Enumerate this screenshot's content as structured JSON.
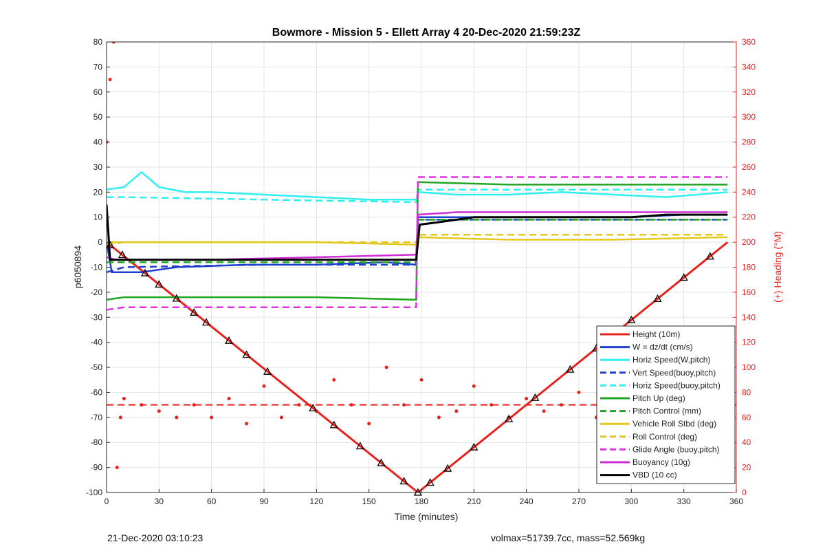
{
  "chart_data": {
    "type": "line",
    "title": "Bowmore - Mission 5 - Ellett Array 4 20-Dec-2020 21:59:23Z",
    "xlabel": "Time (minutes)",
    "ylabel": "p6050894",
    "ylabel_right": "(+) Heading (°M)",
    "xlim": [
      0,
      360
    ],
    "ylim": [
      -100,
      80
    ],
    "ylim_right": [
      0,
      360
    ],
    "xticks": [
      0,
      30,
      60,
      90,
      120,
      150,
      180,
      210,
      240,
      270,
      300,
      330,
      360
    ],
    "yticks": [
      -100,
      -90,
      -80,
      -70,
      -60,
      -50,
      -40,
      -30,
      -20,
      -10,
      0,
      10,
      20,
      30,
      40,
      50,
      60,
      70,
      80
    ],
    "yticks_right": [
      0,
      20,
      40,
      60,
      80,
      100,
      120,
      140,
      160,
      180,
      200,
      220,
      240,
      260,
      280,
      300,
      320,
      340,
      360
    ],
    "grid": true,
    "legend_position": "bottom-right",
    "series": [
      {
        "name": "Height (10m)",
        "color": "#e8211c",
        "style": "solid",
        "x": [
          0,
          178,
          355
        ],
        "y": [
          0,
          -100,
          0
        ]
      },
      {
        "name": "W = dz/dt (cm/s)",
        "color": "#1f3fd1",
        "style": "solid",
        "x": [
          0,
          3,
          10,
          20,
          40,
          80,
          120,
          160,
          177,
          178,
          200,
          250,
          300,
          330,
          355
        ],
        "y": [
          0,
          -12,
          -12,
          -12,
          -10,
          -9,
          -9,
          -8,
          -9,
          10,
          10,
          10,
          10,
          11,
          11
        ]
      },
      {
        "name": "Horiz Speed(W,pitch)",
        "color": "#2ff0f0",
        "style": "solid",
        "x": [
          0,
          10,
          20,
          30,
          45,
          60,
          90,
          120,
          150,
          177,
          178,
          200,
          230,
          260,
          290,
          320,
          355
        ],
        "y": [
          21,
          22,
          28,
          22,
          20,
          20,
          19,
          18,
          17,
          17,
          20,
          19,
          19,
          20,
          19,
          18,
          20
        ]
      },
      {
        "name": "Vert Speed(buoy,pitch)",
        "color": "#1f3fd1",
        "style": "dash",
        "x": [
          0,
          10,
          90,
          177,
          178,
          260,
          355
        ],
        "y": [
          -12,
          -10,
          -9,
          -9,
          9,
          9,
          9
        ]
      },
      {
        "name": "Horiz Speed(buoy,pitch)",
        "color": "#2ff0f0",
        "style": "dash",
        "x": [
          0,
          10,
          90,
          177,
          178,
          260,
          355
        ],
        "y": [
          18,
          18,
          17,
          16,
          21,
          21,
          21
        ]
      },
      {
        "name": "Pitch Up (deg)",
        "color": "#1fa51f",
        "style": "solid",
        "x": [
          0,
          10,
          60,
          120,
          177,
          178,
          230,
          290,
          355
        ],
        "y": [
          -23,
          -22,
          -22,
          -22,
          -23,
          24,
          23,
          23,
          23
        ]
      },
      {
        "name": "Pitch Control (mm)",
        "color": "#1fa51f",
        "style": "dash",
        "x": [
          0,
          10,
          90,
          177,
          178,
          260,
          355
        ],
        "y": [
          -8,
          -8,
          -8,
          -8,
          9,
          9,
          9
        ]
      },
      {
        "name": "Vehicle Roll Stbd (deg)",
        "color": "#e2c81a",
        "style": "solid",
        "x": [
          0,
          10,
          60,
          120,
          177,
          178,
          230,
          290,
          355
        ],
        "y": [
          0,
          0,
          0,
          0,
          -1,
          2,
          1,
          1,
          2
        ]
      },
      {
        "name": "Roll Control (deg)",
        "color": "#e2c81a",
        "style": "dash",
        "x": [
          0,
          10,
          90,
          177,
          178,
          260,
          355
        ],
        "y": [
          -1,
          0,
          0,
          0,
          3,
          3,
          3
        ]
      },
      {
        "name": "Glide Angle (buoy,pitch)",
        "color": "#e52fe5",
        "style": "dash",
        "x": [
          0,
          10,
          90,
          177,
          178,
          260,
          355
        ],
        "y": [
          -27,
          -26,
          -26,
          -26,
          26,
          26,
          26
        ]
      },
      {
        "name": "Buoyancy (10g)",
        "color": "#cf2bd6",
        "style": "solid",
        "x": [
          0,
          5,
          60,
          120,
          177,
          178,
          200,
          250,
          300,
          355
        ],
        "y": [
          -6,
          -7,
          -7,
          -6,
          -5,
          11,
          12,
          12,
          12,
          12
        ]
      },
      {
        "name": "VBD (10 cc)",
        "color": "#000000",
        "style": "solid",
        "x": [
          0,
          2,
          50,
          100,
          177,
          179,
          190,
          210,
          250,
          300,
          320,
          355
        ],
        "y": [
          15,
          -7,
          -7,
          -7,
          -7,
          7,
          8,
          10,
          10,
          10,
          11,
          11
        ]
      }
    ],
    "heading_series": {
      "color": "#e8211c",
      "mean_heading": 70,
      "x": [
        0,
        2,
        4,
        6,
        8,
        10,
        20,
        30,
        40,
        50,
        60,
        70,
        80,
        90,
        100,
        110,
        120,
        130,
        140,
        150,
        160,
        170,
        180,
        190,
        200,
        210,
        220,
        230,
        240,
        250,
        260,
        270,
        280,
        290,
        300,
        310,
        320,
        330,
        340,
        350,
        355
      ],
      "y": [
        280,
        330,
        360,
        20,
        60,
        75,
        70,
        65,
        60,
        70,
        60,
        75,
        55,
        85,
        60,
        70,
        65,
        90,
        70,
        55,
        100,
        70,
        90,
        60,
        65,
        85,
        70,
        60,
        75,
        65,
        70,
        80,
        60,
        85,
        60,
        80,
        65,
        85,
        70,
        75,
        80
      ]
    }
  },
  "footer": {
    "left": "21-Dec-2020 03:10:23",
    "right": "volmax=51739.7cc, mass=52.569kg"
  }
}
